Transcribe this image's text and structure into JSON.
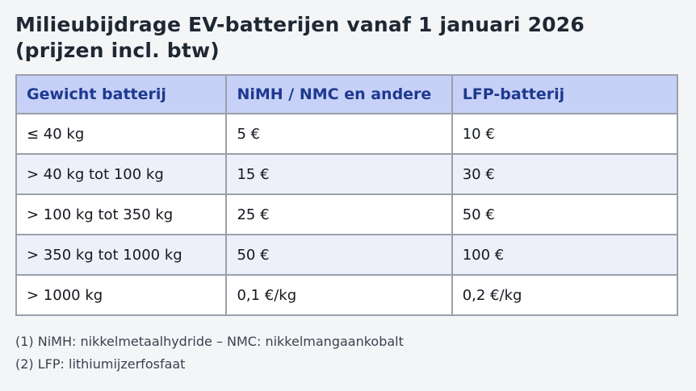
{
  "page": {
    "title_line1": "Milieubijdrage EV-batterijen vanaf 1 januari 2026",
    "title_line2": "(prijzen incl. btw)"
  },
  "table": {
    "headers": [
      "Gewicht batterij",
      "NiMH / NMC en andere",
      "LFP-batterij"
    ],
    "rows": [
      [
        "≤ 40 kg",
        "5 €",
        "10 €"
      ],
      [
        "> 40 kg tot 100 kg",
        "15 €",
        "30 €"
      ],
      [
        "> 100 kg tot 350 kg",
        "25 €",
        "50 €"
      ],
      [
        "> 350 kg tot 1000 kg",
        "50 €",
        "100 €"
      ],
      [
        "> 1000 kg",
        "0,1 €/kg",
        "0,2 €/kg"
      ]
    ]
  },
  "footnotes": [
    "(1) NiMH: nikkelmetaalhydride – NMC: nikkelmangaankobalt",
    "(2) LFP: lithiumijzerfosfaat"
  ],
  "colors": {
    "page_bg": "#f4f5f7",
    "header_bg": "#c7d0f7",
    "header_text": "#1e3a8f",
    "row_bg": "#ffffff",
    "row_alt_bg": "#edf0fb",
    "border": "#9aa0a8",
    "title_text": "#1e2833",
    "body_text": "#14181f",
    "footnote_text": "#3a424e"
  }
}
